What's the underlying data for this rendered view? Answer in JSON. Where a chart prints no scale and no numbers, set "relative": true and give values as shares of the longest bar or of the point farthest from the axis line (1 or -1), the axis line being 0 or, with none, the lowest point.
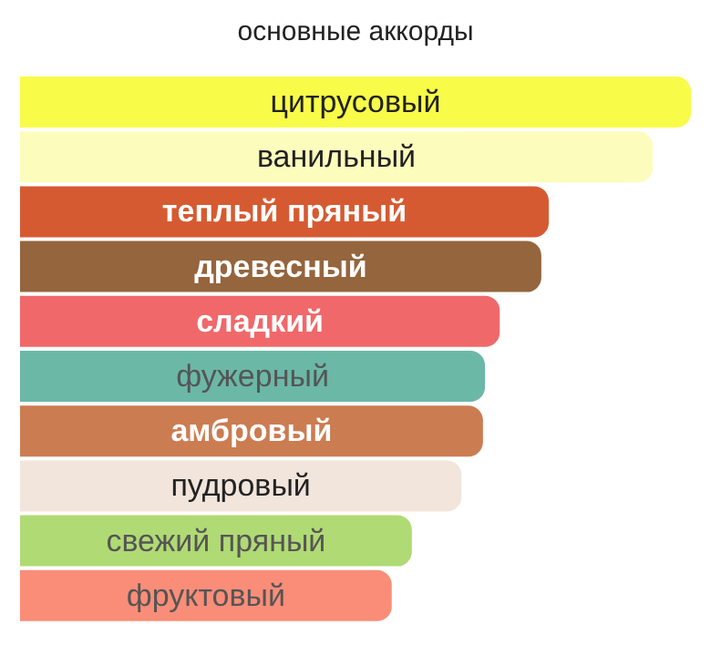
{
  "chart_data": {
    "type": "bar",
    "title": "основные аккорды",
    "orientation": "horizontal",
    "relative": true,
    "categories": [
      "цитрусовый",
      "ванильный",
      "теплый пряный",
      "древесный",
      "сладкий",
      "фужерный",
      "амбровый",
      "пудровый",
      "свежий пряный",
      "фруктовый"
    ],
    "values": [
      1,
      0.943,
      0.788,
      0.777,
      0.715,
      0.693,
      0.69,
      0.658,
      0.584,
      0.554
    ],
    "colors": [
      "#f8fc48",
      "#fcfcbc",
      "#d65a31",
      "#95653d",
      "#f0686a",
      "#6bb8a7",
      "#cc7c51",
      "#f1e5dc",
      "#b0da74",
      "#fa8d78"
    ],
    "data_labels": false,
    "grid": false,
    "legend": false
  }
}
